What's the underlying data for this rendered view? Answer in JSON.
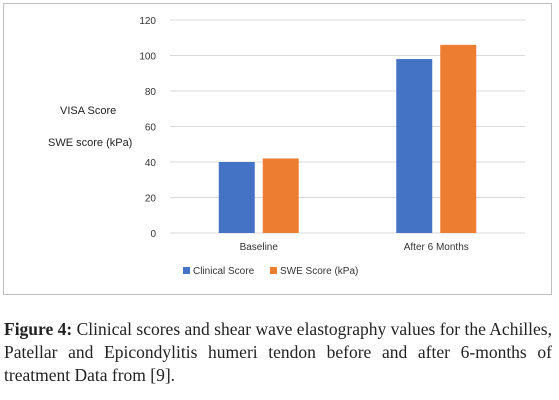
{
  "chart_data": {
    "type": "bar",
    "categories": [
      "Baseline",
      "After 6 Months"
    ],
    "series": [
      {
        "name": "Clinical Score",
        "values": [
          40,
          98
        ],
        "color": "#4472C4"
      },
      {
        "name": "SWE Score (kPa)",
        "values": [
          42,
          106
        ],
        "color": "#ED7D31"
      }
    ],
    "ylim": [
      0,
      120
    ],
    "yticks": [
      0,
      20,
      40,
      60,
      80,
      100,
      120
    ],
    "grid": true,
    "legend_position": "bottom",
    "ylabel_lines": [
      "VISA Score",
      "SWE score (kPa)"
    ]
  },
  "caption": {
    "label": "Figure 4:",
    "text": " Clinical scores and shear wave elastography values for the Achilles, Patellar and Epicondylitis humeri tendon before and after 6-months of treatment Data from [9]."
  }
}
